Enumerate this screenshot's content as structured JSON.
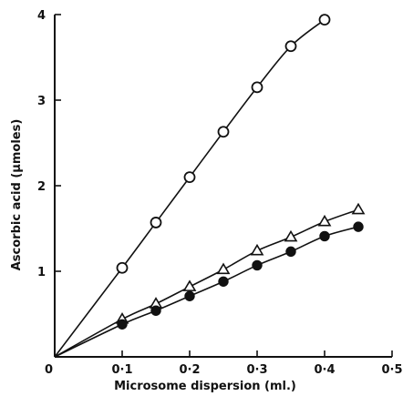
{
  "chart_data": {
    "type": "line",
    "title": "",
    "xlabel": "Microsome dispersion (ml.)",
    "ylabel": "Ascorbic acid (μmoles)",
    "xlim": [
      0,
      0.5
    ],
    "ylim": [
      0,
      4
    ],
    "x_ticks": [
      0,
      0.1,
      0.2,
      0.3,
      0.4,
      0.5
    ],
    "x_tick_labels": [
      "0",
      "0·1",
      "0·2",
      "0·3",
      "0·4",
      "0·5"
    ],
    "y_ticks": [
      0,
      1,
      2,
      3,
      4
    ],
    "y_tick_labels": [
      "0",
      "1",
      "2",
      "3",
      "4"
    ],
    "grid": false,
    "series": [
      {
        "marker": "open-circle",
        "x": [
          0,
          0.1,
          0.15,
          0.2,
          0.25,
          0.3,
          0.35,
          0.4
        ],
        "y": [
          0,
          1.04,
          1.57,
          2.1,
          2.63,
          3.15,
          3.63,
          3.94
        ]
      },
      {
        "marker": "open-triangle",
        "x": [
          0,
          0.1,
          0.15,
          0.2,
          0.25,
          0.3,
          0.35,
          0.4,
          0.45
        ],
        "y": [
          0,
          0.44,
          0.62,
          0.82,
          1.02,
          1.24,
          1.4,
          1.58,
          1.72
        ]
      },
      {
        "marker": "filled-circle",
        "x": [
          0,
          0.1,
          0.15,
          0.2,
          0.25,
          0.3,
          0.35,
          0.4,
          0.45
        ],
        "y": [
          0,
          0.38,
          0.54,
          0.71,
          0.88,
          1.07,
          1.23,
          1.41,
          1.52
        ]
      }
    ]
  }
}
